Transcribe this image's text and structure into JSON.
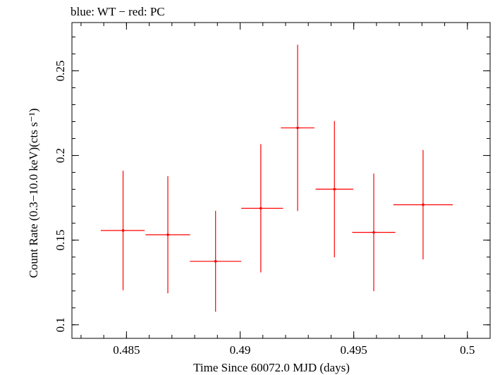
{
  "chart_data": {
    "type": "scatter",
    "title": "blue: WT − red: PC",
    "xlabel": "Time Since 60072.0 MJD (days)",
    "ylabel": "Count Rate (0.3−10.0 keV)(cts s⁻¹)",
    "xlim": [
      0.4826,
      0.501
    ],
    "ylim": [
      0.092,
      0.2785
    ],
    "x_ticks": [
      {
        "value": 0.485,
        "label": "0.485"
      },
      {
        "value": 0.49,
        "label": "0.49"
      },
      {
        "value": 0.495,
        "label": "0.495"
      },
      {
        "value": 0.5,
        "label": "0.5"
      }
    ],
    "y_ticks": [
      {
        "value": 0.1,
        "label": "0.1"
      },
      {
        "value": 0.15,
        "label": "0.15"
      },
      {
        "value": 0.2,
        "label": "0.2"
      },
      {
        "value": 0.25,
        "label": "0.25"
      }
    ],
    "x_minor_step": 0.001,
    "y_minor_step": 0.01,
    "grid": false,
    "series": [
      {
        "name": "PC",
        "color": "#ff0000",
        "points": [
          {
            "x": 0.48485,
            "xerr": [
              0.00098,
              0.00095
            ],
            "y": 0.1557,
            "yerr": [
              0.0353,
              0.0353
            ]
          },
          {
            "x": 0.48682,
            "xerr": [
              0.00098,
              0.00098
            ],
            "y": 0.1532,
            "yerr": [
              0.0346,
              0.0346
            ]
          },
          {
            "x": 0.48892,
            "xerr": [
              0.00113,
              0.00113
            ],
            "y": 0.1375,
            "yerr": [
              0.0298,
              0.0298
            ]
          },
          {
            "x": 0.49091,
            "xerr": [
              0.00086,
              0.00098
            ],
            "y": 0.1688,
            "yerr": [
              0.0379,
              0.0379
            ]
          },
          {
            "x": 0.49253,
            "xerr": [
              0.00074,
              0.00074
            ],
            "y": 0.2163,
            "yerr": [
              0.0491,
              0.0491
            ]
          },
          {
            "x": 0.49415,
            "xerr": [
              0.00083,
              0.00083
            ],
            "y": 0.1801,
            "yerr": [
              0.0403,
              0.0403
            ]
          },
          {
            "x": 0.49588,
            "xerr": [
              0.00095,
              0.00095
            ],
            "y": 0.1546,
            "yerr": [
              0.0347,
              0.0347
            ]
          },
          {
            "x": 0.49805,
            "xerr": [
              0.00131,
              0.00131
            ],
            "y": 0.1709,
            "yerr": [
              0.0323,
              0.0323
            ]
          }
        ]
      }
    ]
  }
}
